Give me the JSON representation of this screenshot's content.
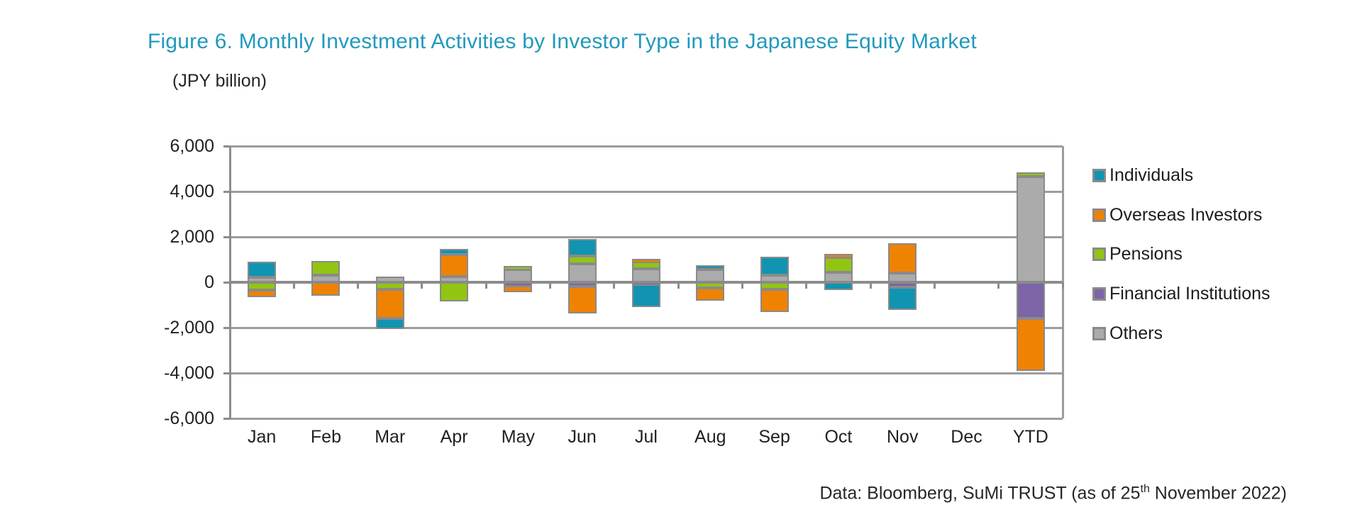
{
  "title": "Figure 6. Monthly Investment Activities by Investor Type in the Japanese Equity Market",
  "title_color": "#2199BD",
  "unit_label": "(JPY billion)",
  "footer": {
    "prefix": "Data: Bloomberg, SuMi TRUST (as of 25",
    "sup": "th",
    "suffix": " November 2022)"
  },
  "chart_data": {
    "type": "bar",
    "stacked": true,
    "title": "Figure 6. Monthly Investment Activities by Investor Type in the Japanese Equity Market",
    "ylabel": "(JPY billion)",
    "xlabel": "",
    "categories": [
      "Jan",
      "Feb",
      "Mar",
      "Apr",
      "May",
      "Jun",
      "Jul",
      "Aug",
      "Sep",
      "Oct",
      "Nov",
      "Dec",
      "YTD"
    ],
    "series": [
      {
        "name": "Individuals",
        "color": "#1094B2",
        "values": [
          680,
          0,
          -450,
          240,
          0,
          750,
          -1000,
          200,
          820,
          -350,
          -1000,
          0,
          0
        ]
      },
      {
        "name": "Overseas Investors",
        "color": "#EF8200",
        "values": [
          -300,
          -600,
          -1300,
          960,
          -300,
          -1200,
          130,
          -550,
          -980,
          150,
          1300,
          0,
          -2300
        ]
      },
      {
        "name": "Pensions",
        "color": "#92C512",
        "values": [
          -350,
          620,
          -300,
          -850,
          160,
          350,
          300,
          -250,
          -320,
          650,
          0,
          0,
          180
        ]
      },
      {
        "name": "Financial Institutions",
        "color": "#7C64A7",
        "values": [
          0,
          0,
          0,
          0,
          -150,
          -180,
          -80,
          0,
          0,
          0,
          -230,
          0,
          -1600
        ]
      },
      {
        "name": "Others",
        "color": "#ABABAB",
        "values": [
          230,
          310,
          250,
          260,
          570,
          800,
          600,
          550,
          300,
          450,
          420,
          0,
          4650
        ]
      }
    ],
    "stack_order_from_zero": [
      "Others",
      "Financial Institutions",
      "Pensions",
      "Overseas Investors",
      "Individuals"
    ],
    "ylim": [
      -6000,
      6000
    ],
    "ytick_step": 2000,
    "yticks": [
      {
        "label": "6,000",
        "value": 6000
      },
      {
        "label": "4,000",
        "value": 4000
      },
      {
        "label": "2,000",
        "value": 2000
      },
      {
        "label": "0",
        "value": 0
      },
      {
        "label": "-2,000",
        "value": -2000
      },
      {
        "label": "-4,000",
        "value": -4000
      },
      {
        "label": "-6,000",
        "value": -6000
      }
    ],
    "grid": true,
    "legend_position": "right",
    "gridline_color": "#9C9C9C",
    "axis_color": "#8C8C8C",
    "segment_border_color": "#8A8A8A"
  }
}
